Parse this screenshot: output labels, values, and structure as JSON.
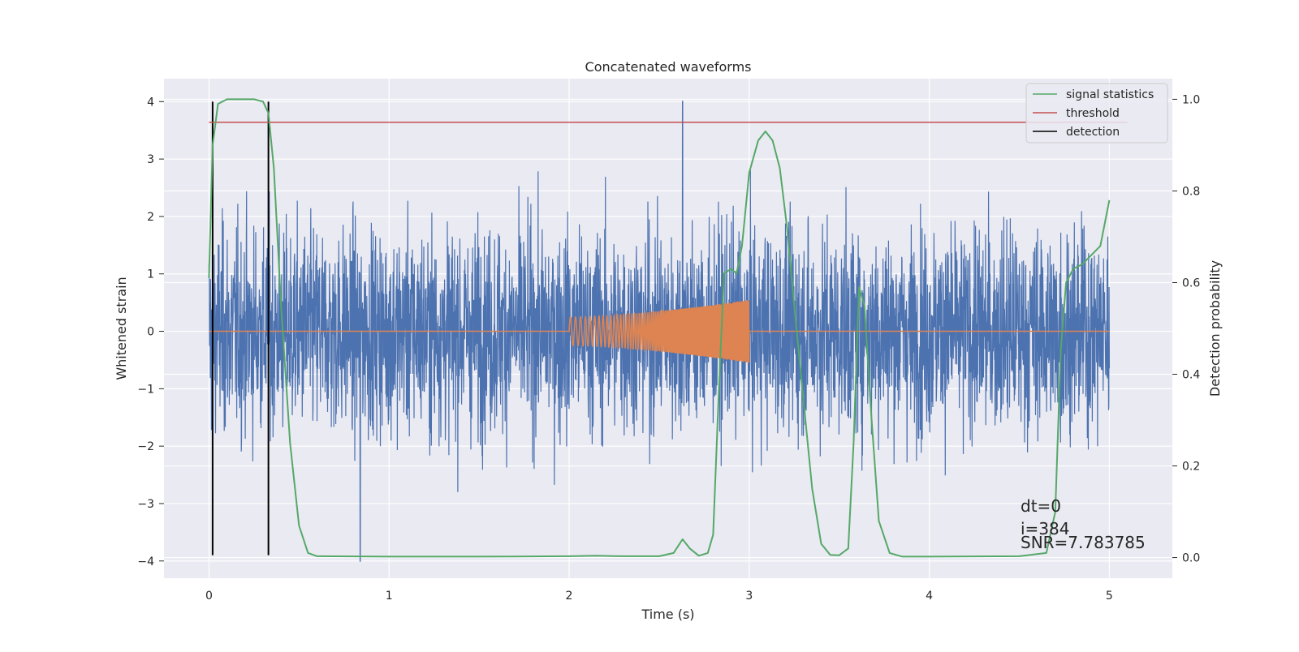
{
  "chart_data": {
    "type": "line",
    "title": "Concatenated waveforms",
    "xlabel": "Time (s)",
    "ylabel_left": "Whitened strain",
    "ylabel_right": "Detection probability",
    "xlim": [
      -0.25,
      5.35
    ],
    "ylim_left": [
      -4.3,
      4.4
    ],
    "ylim_right": [
      -0.045,
      1.045
    ],
    "x_ticks": [
      "0",
      "1",
      "2",
      "3",
      "4",
      "5"
    ],
    "y_left_ticks": [
      "−4",
      "−3",
      "−2",
      "−1",
      "0",
      "1",
      "2",
      "3",
      "4"
    ],
    "y_right_ticks": [
      "0.0",
      "0.2",
      "0.4",
      "0.6",
      "0.8",
      "1.0"
    ],
    "grid": true,
    "legend_position": "top-right",
    "legend": [
      {
        "label": "signal statistics",
        "color": "#55a868"
      },
      {
        "label": "threshold",
        "color": "#c44e52"
      },
      {
        "label": "detection",
        "color": "#000000"
      }
    ],
    "series": [
      {
        "id": "noisy-strain",
        "axis": "left",
        "color": "#4c72b0",
        "description_values": {
          "x_range": [
            0,
            5
          ],
          "typical_amplitude": 1.6,
          "max": 4.0,
          "min": -3.9
        }
      },
      {
        "id": "injected-waveform",
        "axis": "left",
        "color": "#dd8452",
        "x": [
          0,
          2.0,
          3.0,
          5.0
        ],
        "envelope": [
          0,
          0.25,
          0.55,
          0
        ],
        "chirp_interval": [
          2.0,
          3.0
        ]
      },
      {
        "name": "signal statistics",
        "axis": "right",
        "color": "#55a868",
        "x": [
          0,
          0.02,
          0.05,
          0.1,
          0.25,
          0.3,
          0.33,
          0.36,
          0.4,
          0.45,
          0.5,
          0.55,
          0.6,
          1.0,
          1.5,
          2.0,
          2.15,
          2.3,
          2.5,
          2.58,
          2.63,
          2.67,
          2.72,
          2.77,
          2.8,
          2.83,
          2.86,
          2.9,
          2.93,
          2.96,
          3.0,
          3.05,
          3.09,
          3.13,
          3.17,
          3.21,
          3.25,
          3.3,
          3.35,
          3.4,
          3.45,
          3.5,
          3.55,
          3.58,
          3.61,
          3.64,
          3.68,
          3.72,
          3.78,
          3.85,
          4.0,
          4.5,
          4.65,
          4.7,
          4.73,
          4.76,
          4.8,
          4.85,
          4.9,
          4.95,
          5.0
        ],
        "values": [
          0.61,
          0.9,
          0.99,
          1.0,
          1.0,
          0.995,
          0.97,
          0.85,
          0.55,
          0.25,
          0.07,
          0.01,
          0.003,
          0.002,
          0.002,
          0.003,
          0.004,
          0.003,
          0.003,
          0.01,
          0.04,
          0.02,
          0.004,
          0.01,
          0.05,
          0.35,
          0.62,
          0.63,
          0.62,
          0.68,
          0.84,
          0.91,
          0.93,
          0.91,
          0.85,
          0.72,
          0.55,
          0.35,
          0.15,
          0.03,
          0.006,
          0.005,
          0.02,
          0.25,
          0.59,
          0.55,
          0.3,
          0.08,
          0.01,
          0.002,
          0.002,
          0.003,
          0.01,
          0.1,
          0.45,
          0.6,
          0.63,
          0.64,
          0.66,
          0.68,
          0.78
        ]
      },
      {
        "name": "threshold",
        "axis": "right",
        "color": "#c44e52",
        "x": [
          0,
          5.1
        ],
        "values": [
          0.95,
          0.95
        ]
      },
      {
        "name": "detection",
        "axis": "left",
        "color": "#000000",
        "x": [
          0.02,
          0.33
        ],
        "y_range": [
          -3.9,
          4.0
        ]
      }
    ],
    "annotations": [
      "dt=0",
      "i=384",
      "SNR=7.783785"
    ]
  }
}
